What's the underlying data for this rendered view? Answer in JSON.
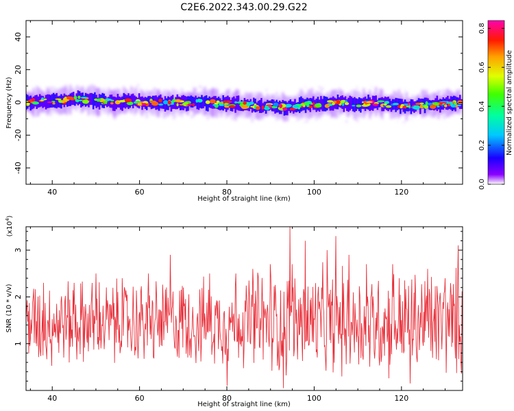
{
  "figure": {
    "title": "C2E6.2022.343.00.29.G22"
  },
  "chart_data": [
    {
      "type": "heatmap",
      "xlabel": "Height of straight line (km)",
      "ylabel": "Frequency (Hz)",
      "xlim": [
        34,
        134
      ],
      "ylim": [
        -50,
        50
      ],
      "xticks": [
        40,
        60,
        80,
        100,
        120
      ],
      "yticks": [
        -40,
        -20,
        0,
        20,
        40
      ],
      "xtick_labels": [
        "40",
        "60",
        "80",
        "100",
        "120"
      ],
      "ytick_labels": [
        "-40",
        "-20",
        "0",
        "20",
        "40"
      ],
      "colorbar": {
        "label": "Normalized spectral amplitude",
        "range": [
          0.0,
          0.84
        ],
        "ticks": [
          0.0,
          0.2,
          0.4,
          0.6,
          0.8
        ],
        "tick_labels": [
          "0.0",
          "0.2",
          "0.4",
          "0.6",
          "0.8"
        ]
      },
      "ridge_center_hz": [
        [
          34,
          0
        ],
        [
          38,
          0.5
        ],
        [
          42,
          1
        ],
        [
          46,
          2
        ],
        [
          50,
          1
        ],
        [
          54,
          0
        ],
        [
          58,
          0.5
        ],
        [
          62,
          0
        ],
        [
          66,
          -0.5
        ],
        [
          70,
          0
        ],
        [
          74,
          0
        ],
        [
          78,
          -1
        ],
        [
          82,
          -1
        ],
        [
          86,
          -2
        ],
        [
          90,
          -2.5
        ],
        [
          94,
          -3
        ],
        [
          98,
          -1.5
        ],
        [
          102,
          -1
        ],
        [
          106,
          -0.5
        ],
        [
          110,
          -1
        ],
        [
          114,
          -0.5
        ],
        [
          118,
          -1.5
        ],
        [
          122,
          -2
        ],
        [
          126,
          -1.5
        ],
        [
          130,
          -1
        ],
        [
          134,
          -0.5
        ]
      ],
      "ridge_halfwidth_hz": 4,
      "peak_amplitude": 0.84
    },
    {
      "type": "line",
      "xlabel": "Height of straight line (km)",
      "ylabel": "SNR (10 * v/v)",
      "y_scale_label": "(x10",
      "y_scale_exp": "4",
      "y_scale_close": ")",
      "xlim": [
        34,
        134
      ],
      "ylim": [
        0,
        3.5
      ],
      "xticks": [
        40,
        60,
        80,
        100,
        120
      ],
      "yticks": [
        1,
        2,
        3
      ],
      "xtick_labels": [
        "40",
        "60",
        "80",
        "100",
        "120"
      ],
      "ytick_labels": [
        "1",
        "2",
        "3"
      ],
      "series": [
        {
          "color": "#e8303a",
          "mean": 1.45,
          "n_points": 800,
          "sample_extremes": [
            [
              35,
              1.1
            ],
            [
              38,
              2.3
            ],
            [
              45,
              2.3
            ],
            [
              50,
              2.5
            ],
            [
              56,
              2.4
            ],
            [
              62,
              2.5
            ],
            [
              67,
              2.9
            ],
            [
              70,
              2.2
            ],
            [
              76,
              2.5
            ],
            [
              80,
              0.1
            ],
            [
              82,
              2.5
            ],
            [
              86,
              2.6
            ],
            [
              90,
              2.7
            ],
            [
              93,
              0.05
            ],
            [
              94.5,
              3.5
            ],
            [
              95,
              2.7
            ],
            [
              98,
              3.2
            ],
            [
              103,
              3.0
            ],
            [
              105,
              3.3
            ],
            [
              108,
              2.9
            ],
            [
              112,
              2.7
            ],
            [
              118,
              2.7
            ],
            [
              122,
              0.15
            ],
            [
              126,
              2.6
            ],
            [
              130,
              2.4
            ],
            [
              133,
              3.1
            ]
          ]
        }
      ]
    }
  ]
}
